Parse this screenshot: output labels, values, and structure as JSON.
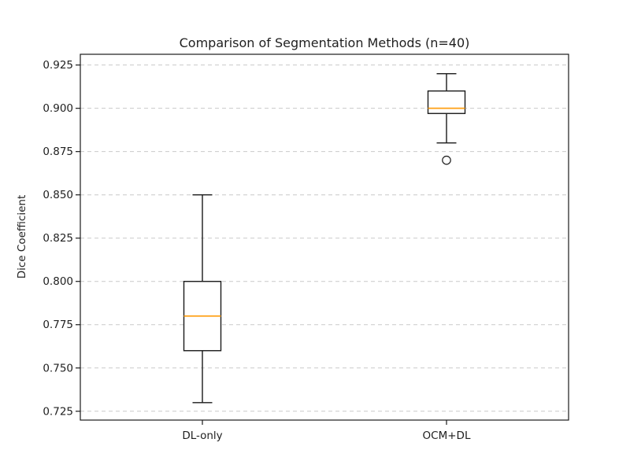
{
  "figure": {
    "background": "#ffffff"
  },
  "chart_data": {
    "type": "box",
    "title": "Comparison of Segmentation Methods (n=40)",
    "xlabel": "",
    "ylabel": "Dice Coefficient",
    "categories": [
      "DL-only",
      "OCM+DL"
    ],
    "series": [
      {
        "name": "DL-only",
        "whisker_low": 0.73,
        "q1": 0.76,
        "median": 0.78,
        "q3": 0.8,
        "whisker_high": 0.85,
        "outliers": []
      },
      {
        "name": "OCM+DL",
        "whisker_low": 0.88,
        "q1": 0.897,
        "median": 0.9,
        "q3": 0.91,
        "whisker_high": 0.92,
        "outliers": [
          0.87
        ]
      }
    ],
    "ylim": [
      0.7199,
      0.9312
    ],
    "yticks": [
      0.725,
      0.75,
      0.775,
      0.8,
      0.825,
      0.85,
      0.875,
      0.9,
      0.925
    ],
    "ytick_labels": [
      "0.725",
      "0.750",
      "0.775",
      "0.800",
      "0.825",
      "0.850",
      "0.875",
      "0.900",
      "0.925"
    ],
    "grid": "dashed-horizontal",
    "legend": "none",
    "colors": {
      "box_edge": "#1a1a1a",
      "median": "#ffa015",
      "grid": "#c9c9c9",
      "frame": "#1a1a1a",
      "text": "#1f1f1f",
      "background": "#ffffff"
    }
  }
}
